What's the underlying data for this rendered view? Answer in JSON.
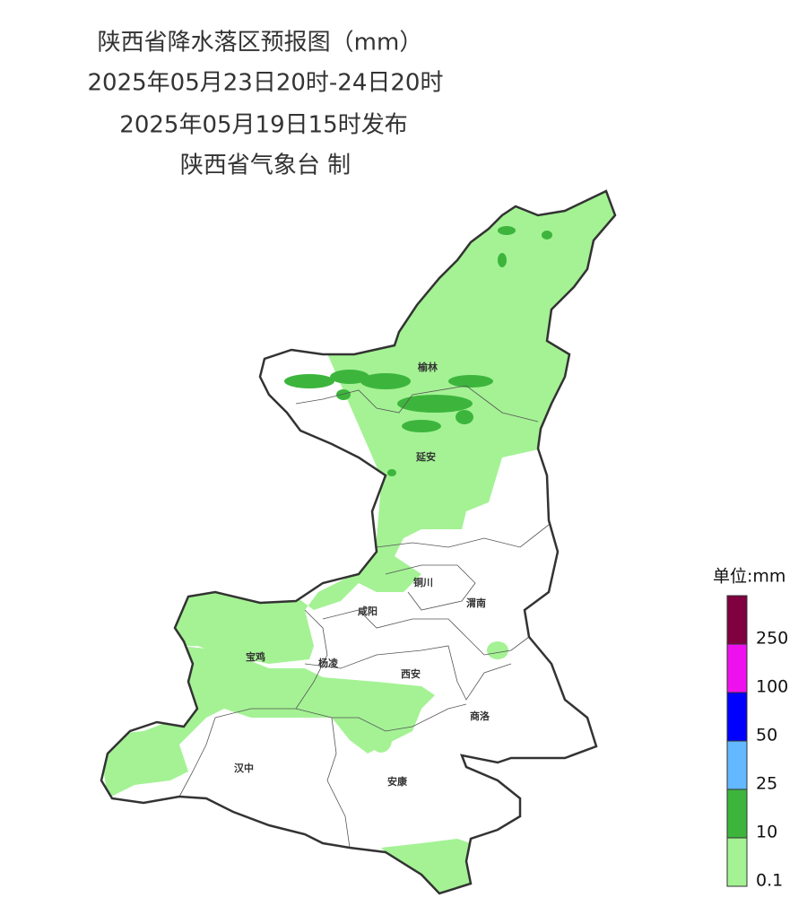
{
  "header": {
    "title": "陕西省降水落区预报图（mm）",
    "period": "2025年05月23日20时-24日20时",
    "issued": "2025年05月19日15时发布",
    "maker": "陕西省气象台 制"
  },
  "cities": [
    "榆林",
    "延安",
    "铜川",
    "渭南",
    "咸阳",
    "宝鸡",
    "杨凌",
    "西安",
    "商洛",
    "汉中",
    "安康"
  ],
  "legend": {
    "title": "单位:mm",
    "levels": [
      0.1,
      10,
      25,
      50,
      100,
      250
    ],
    "colors": [
      "#a4f294",
      "#3db53d",
      "#63b8ff",
      "#0000ff",
      "#ee11ee",
      "#800040"
    ]
  }
}
